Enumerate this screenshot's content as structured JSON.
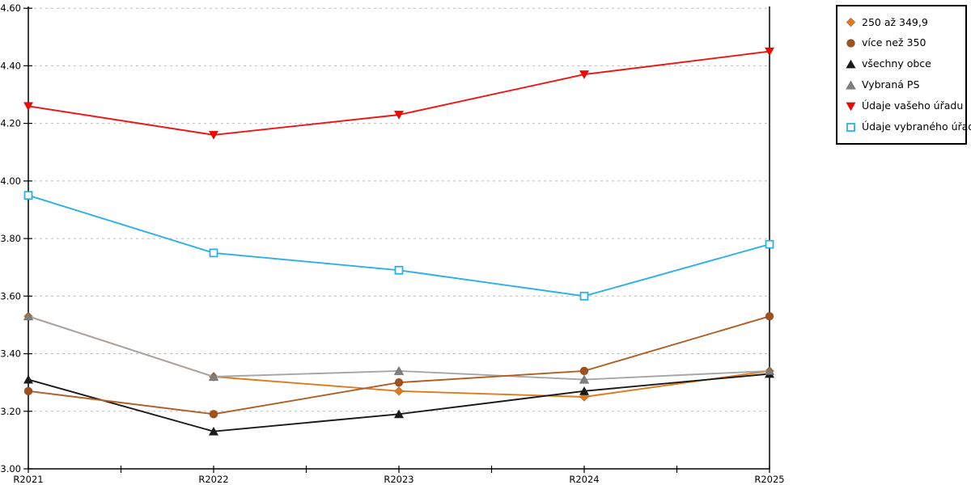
{
  "chart_data": {
    "type": "line",
    "title": "",
    "xlabel": "",
    "ylabel": "",
    "categories": [
      "R2021",
      "R2022",
      "R2023",
      "R2024",
      "R2025"
    ],
    "series": [
      {
        "name": "250 až 349,9",
        "marker": "diamond",
        "color": "#E07A1A",
        "line_color": "#E07A1A",
        "values": [
          3.53,
          3.32,
          3.27,
          3.25,
          3.34
        ]
      },
      {
        "name": "více než 350",
        "marker": "circle",
        "color": "#A3511A",
        "line_color": "#B05E22",
        "values": [
          3.27,
          3.19,
          3.3,
          3.34,
          3.53
        ]
      },
      {
        "name": "všechny obce",
        "marker": "triangle-up",
        "color": "#1A1A1A",
        "line_color": "#1A1A1A",
        "values": [
          3.31,
          3.13,
          3.19,
          3.27,
          3.33
        ]
      },
      {
        "name": "Vybraná PS",
        "marker": "triangle-up",
        "color": "#7F7F7F",
        "line_color": "#A6A6A6",
        "values": [
          3.53,
          3.32,
          3.34,
          3.31,
          3.34
        ]
      },
      {
        "name": "Údaje vašeho úřadu",
        "marker": "triangle-down",
        "color": "#FF0000",
        "line_color": "#F01414",
        "values": [
          4.26,
          4.16,
          4.23,
          4.37,
          4.45
        ]
      },
      {
        "name": "Údaje vybraného úřadu",
        "marker": "square-open",
        "color": "#2BB0E8",
        "line_color": "#2BB0E8",
        "values": [
          3.95,
          3.75,
          3.69,
          3.6,
          3.78
        ]
      }
    ],
    "ylim": [
      3.0,
      4.6
    ],
    "ytick_step": 0.2,
    "ytick_labels": [
      "3.00",
      "3.20",
      "3.40",
      "3.60",
      "3.80",
      "4.00",
      "4.20",
      "4.40",
      "4.60"
    ],
    "grid": "horizontal-dashed",
    "legend_position": "top-right"
  }
}
